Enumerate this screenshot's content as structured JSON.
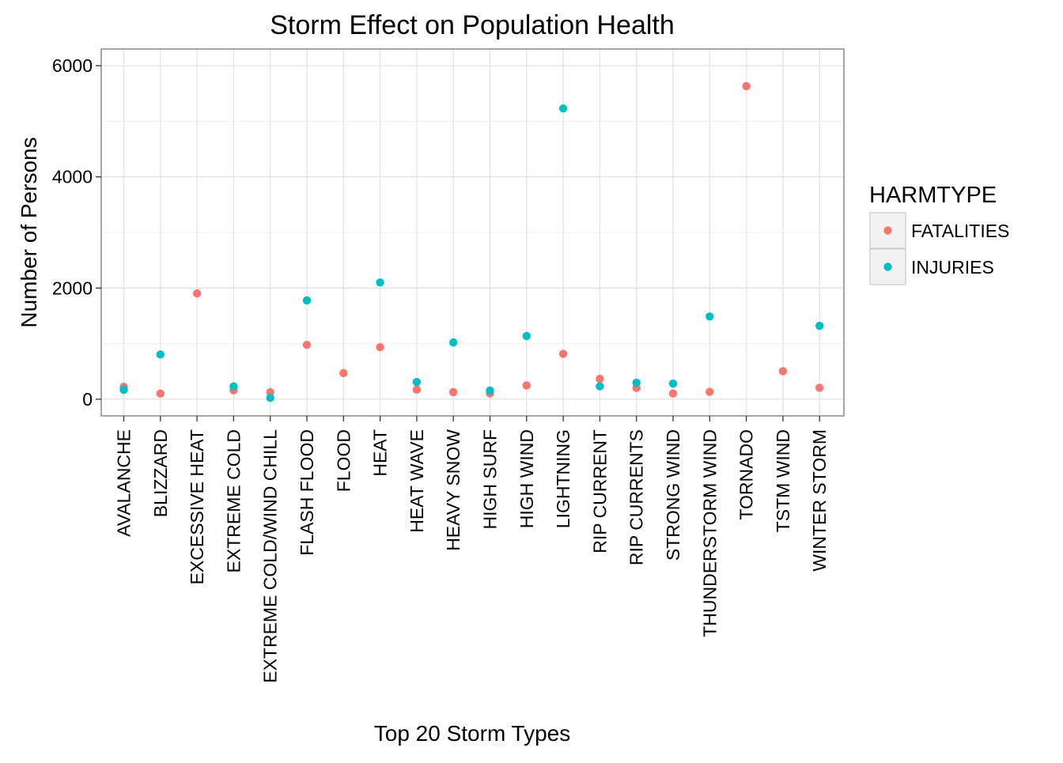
{
  "chart_data": {
    "type": "scatter",
    "title": "Storm Effect on Population Health",
    "xlabel": "Top 20 Storm Types",
    "ylabel": "Number of Persons",
    "ylim": [
      -300,
      6300
    ],
    "yticks": [
      0,
      2000,
      4000,
      6000
    ],
    "grid": true,
    "legend": {
      "title": "HARMTYPE",
      "position": "right"
    },
    "categories": [
      "AVALANCHE",
      "BLIZZARD",
      "EXCESSIVE HEAT",
      "EXTREME COLD",
      "EXTREME COLD/WIND CHILL",
      "FLASH FLOOD",
      "FLOOD",
      "HEAT",
      "HEAT WAVE",
      "HEAVY SNOW",
      "HIGH SURF",
      "HIGH WIND",
      "LIGHTNING",
      "RIP CURRENT",
      "RIP CURRENTS",
      "STRONG WIND",
      "THUNDERSTORM WIND",
      "TORNADO",
      "TSTM WIND",
      "WINTER STORM"
    ],
    "series": [
      {
        "name": "FATALITIES",
        "color": "#F8766D",
        "values": [
          224,
          101,
          1903,
          160,
          125,
          978,
          470,
          937,
          172,
          127,
          104,
          248,
          816,
          368,
          204,
          103,
          133,
          5633,
          504,
          206
        ]
      },
      {
        "name": "INJURIES",
        "color": "#00BFC4",
        "values": [
          170,
          805,
          null,
          231,
          24,
          1777,
          null,
          2100,
          309,
          1021,
          156,
          1137,
          5230,
          232,
          297,
          280,
          1488,
          null,
          null,
          1321
        ]
      }
    ]
  }
}
